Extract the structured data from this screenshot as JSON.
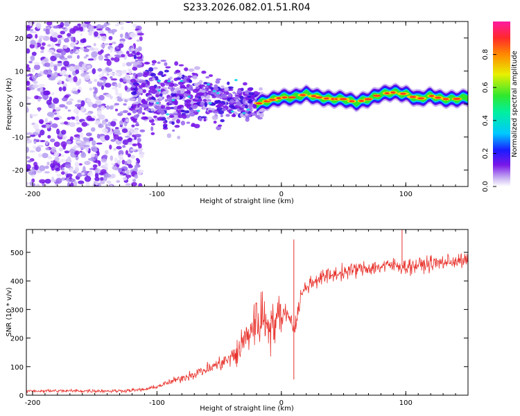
{
  "title": "S233.2026.082.01.51.R04",
  "colors": {
    "trace": "#e8302a",
    "low_amp": "#b9a2f0",
    "mid_amp": "#6a12e6",
    "axes": "#000000"
  },
  "chart_data": [
    {
      "type": "heatmap",
      "title": "S233.2026.082.01.51.R04",
      "xlabel": "Height of straight line (km)",
      "ylabel": "Frequency (Hz)",
      "xlim": [
        -205,
        150
      ],
      "ylim": [
        -25,
        25
      ],
      "xticks": [
        -200,
        -100,
        0,
        100
      ],
      "yticks": [
        20,
        10,
        0,
        -10,
        -20
      ],
      "colorbar": {
        "label": "Normalized spectral amplitude",
        "range": [
          0,
          1
        ],
        "ticks": [
          "0.0",
          "0.2",
          "0.4",
          "0.6",
          "0.8"
        ]
      },
      "ridge": {
        "description_free": true,
        "x": [
          -20,
          -10,
          0,
          10,
          20,
          30,
          40,
          50,
          60,
          70,
          80,
          90,
          100,
          110,
          120,
          130,
          140,
          150
        ],
        "freq_hz": [
          0,
          1,
          2,
          2,
          3,
          2,
          1.5,
          1.5,
          0.5,
          1.5,
          3,
          3.5,
          3,
          1.5,
          2.5,
          1.5,
          1.5,
          2
        ]
      }
    },
    {
      "type": "line",
      "xlabel": "Height of straight line (km)",
      "ylabel": "SNR (10 * v/v)",
      "xlim": [
        -205,
        150
      ],
      "ylim": [
        0,
        580
      ],
      "xticks": [
        -200,
        -100,
        0,
        100
      ],
      "yticks": [
        0,
        100,
        200,
        300,
        400,
        500
      ],
      "series": [
        {
          "name": "SNR",
          "x": [
            -205,
            -180,
            -150,
            -130,
            -110,
            -100,
            -80,
            -60,
            -50,
            -40,
            -35,
            -30,
            -25,
            -20,
            -15,
            -10,
            -5,
            0,
            5,
            10,
            12,
            15,
            20,
            30,
            40,
            50,
            60,
            70,
            80,
            90,
            100,
            110,
            120,
            130,
            140,
            150
          ],
          "values": [
            15,
            15,
            15,
            15,
            20,
            30,
            60,
            90,
            110,
            130,
            150,
            190,
            230,
            260,
            270,
            260,
            250,
            280,
            290,
            240,
            250,
            340,
            380,
            410,
            420,
            430,
            440,
            445,
            450,
            455,
            450,
            455,
            460,
            465,
            470,
            470
          ]
        }
      ],
      "annotations": [
        {
          "x": 10,
          "value": 545,
          "label": "spike"
        },
        {
          "x": 10,
          "value": 55,
          "label": "dip"
        },
        {
          "x": 97,
          "value": 580,
          "label": "spike"
        }
      ]
    }
  ]
}
